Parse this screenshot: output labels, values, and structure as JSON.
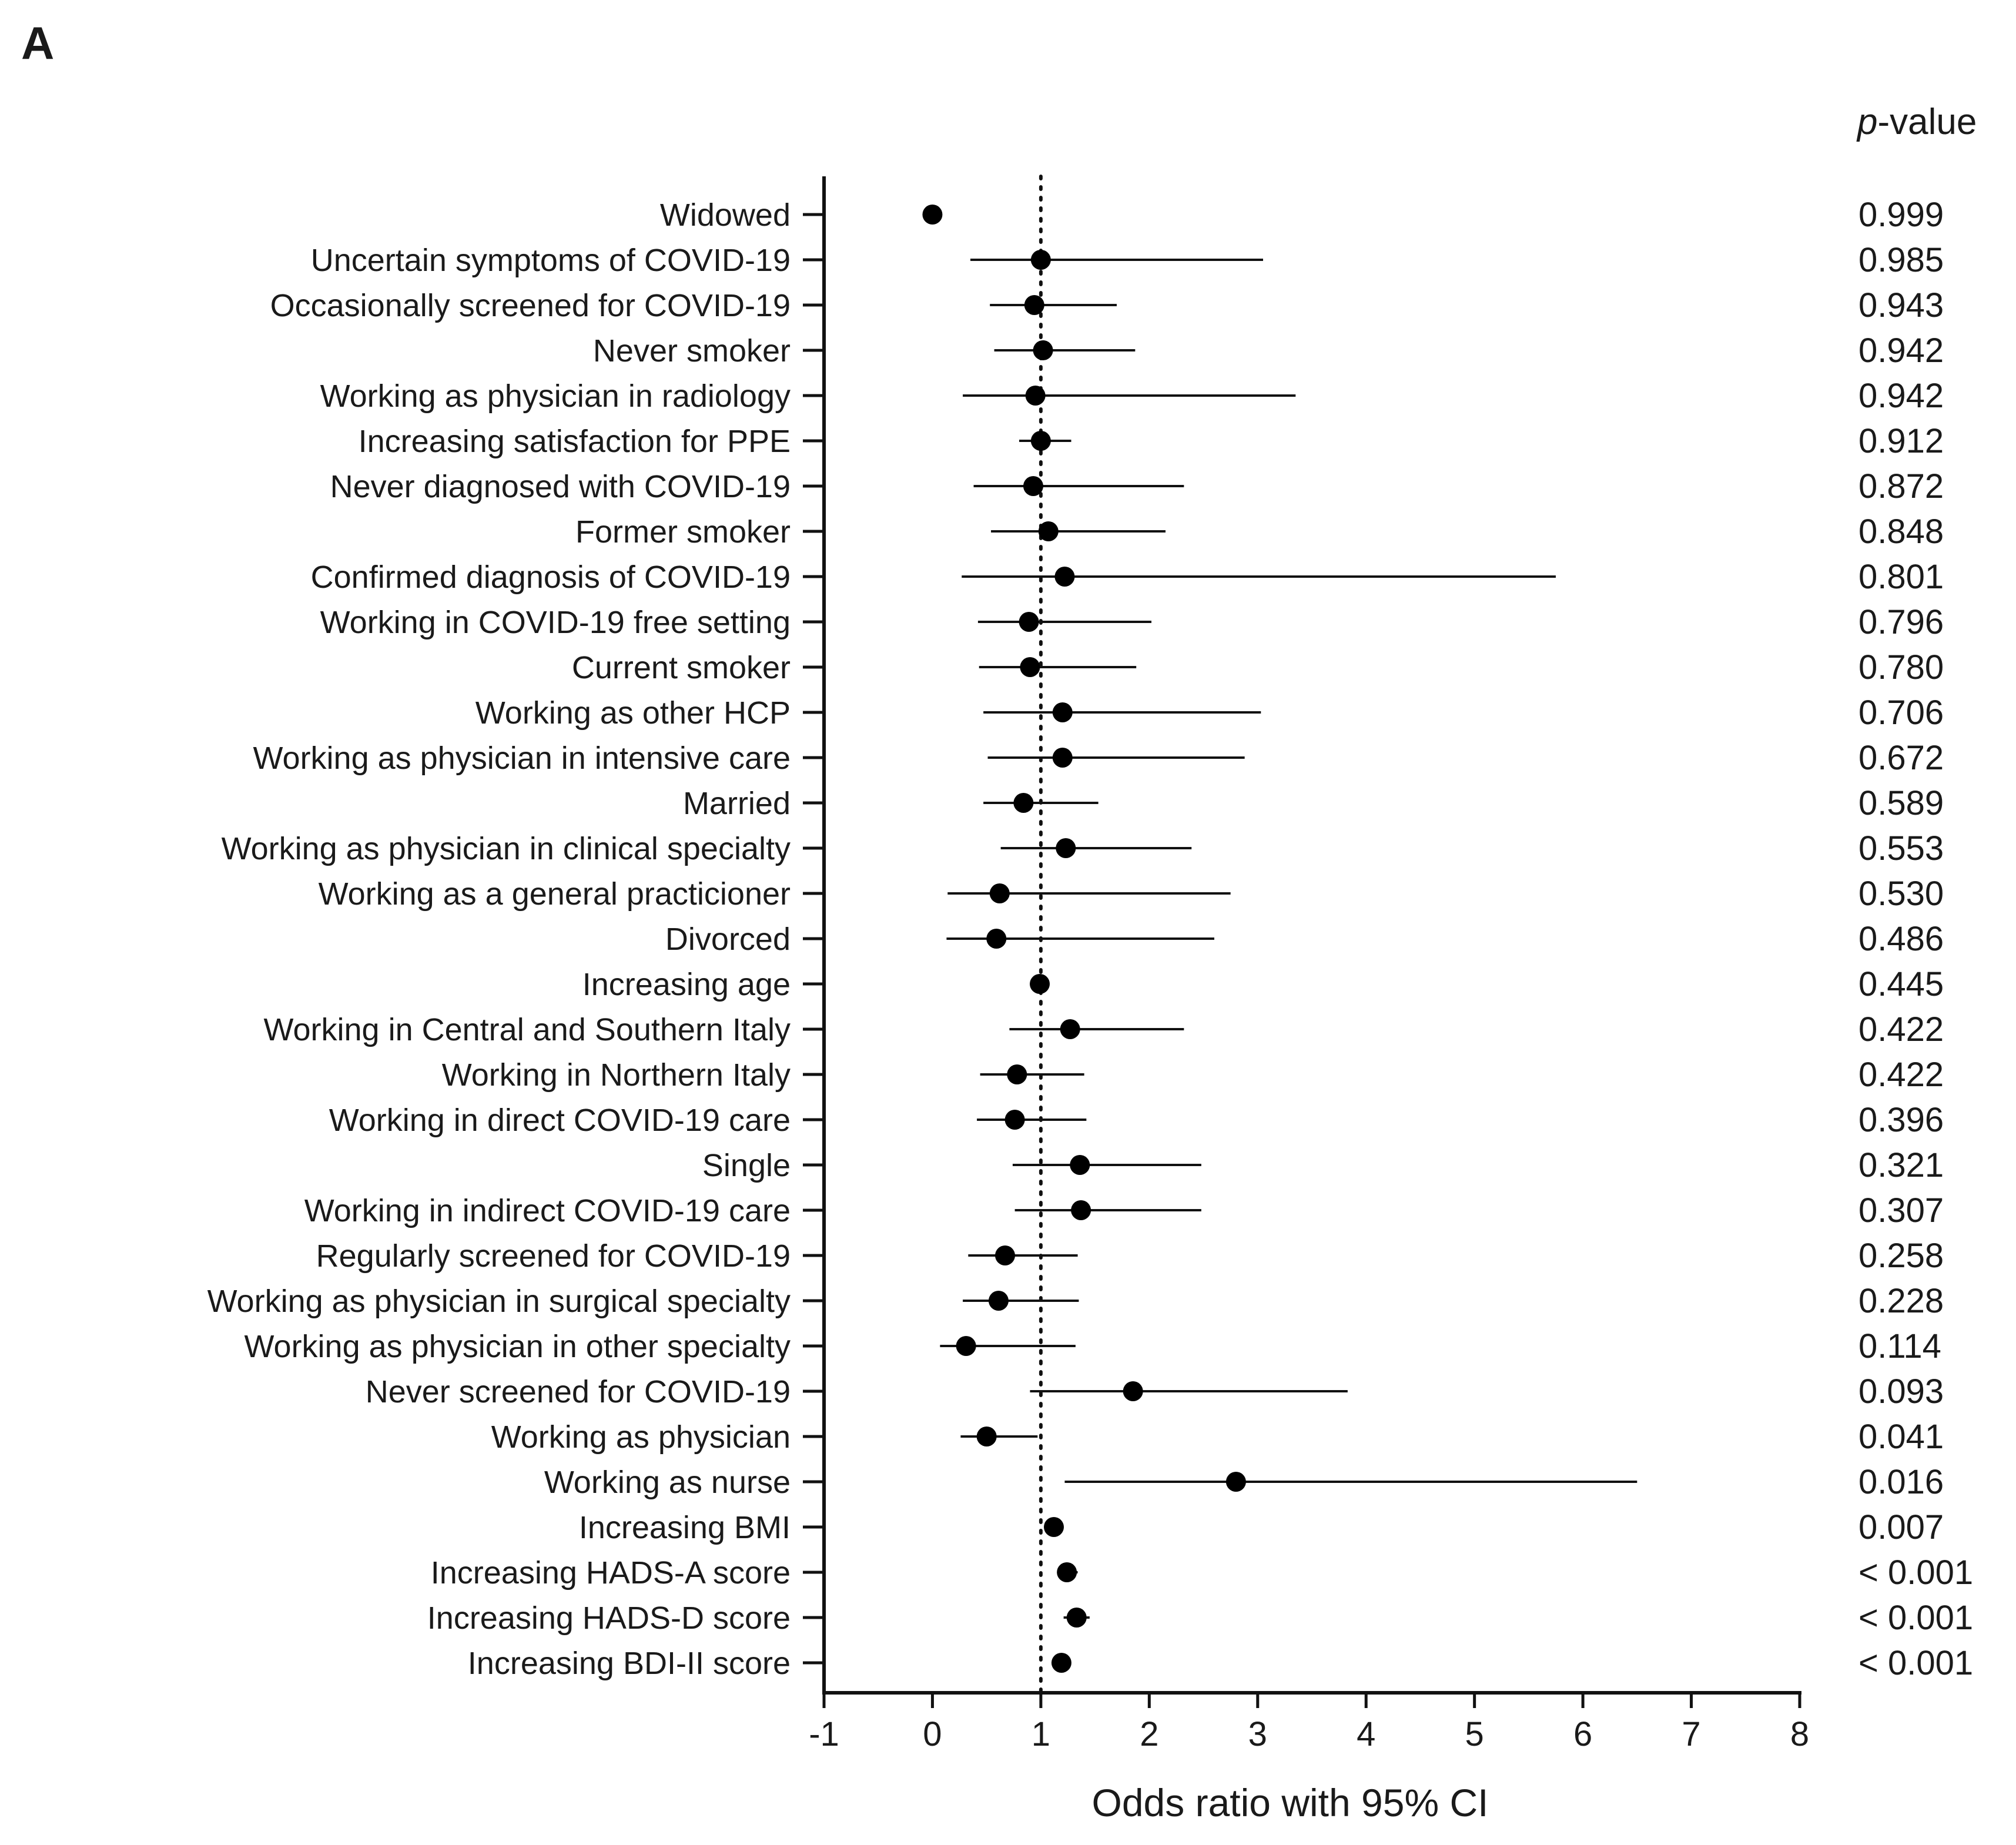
{
  "panel_label": "A",
  "pvalue_header": {
    "italic_part": "p",
    "rest": "-value"
  },
  "chart_data": {
    "type": "forest",
    "title": "",
    "xlabel": "Odds ratio with 95% CI",
    "ylabel": "",
    "xlim": [
      -1,
      8
    ],
    "xticks": [
      -1,
      0,
      1,
      2,
      3,
      4,
      5,
      6,
      7,
      8
    ],
    "reference_line": 1,
    "rows": [
      {
        "label": "Widowed",
        "or": 0.0,
        "lo": null,
        "hi": null,
        "p": "0.999"
      },
      {
        "label": "Uncertain symptoms of COVID-19",
        "or": 1.0,
        "lo": 0.35,
        "hi": 3.05,
        "p": "0.985"
      },
      {
        "label": "Occasionally screened for COVID-19",
        "or": 0.94,
        "lo": 0.53,
        "hi": 1.7,
        "p": "0.943"
      },
      {
        "label": "Never smoker",
        "or": 1.02,
        "lo": 0.57,
        "hi": 1.87,
        "p": "0.942"
      },
      {
        "label": "Working as physician in radiology",
        "or": 0.95,
        "lo": 0.28,
        "hi": 3.35,
        "p": "0.942"
      },
      {
        "label": "Increasing satisfaction for PPE",
        "or": 1.0,
        "lo": 0.8,
        "hi": 1.28,
        "p": "0.912"
      },
      {
        "label": "Never diagnosed with COVID-19",
        "or": 0.93,
        "lo": 0.38,
        "hi": 2.32,
        "p": "0.872"
      },
      {
        "label": "Former smoker",
        "or": 1.07,
        "lo": 0.54,
        "hi": 2.15,
        "p": "0.848"
      },
      {
        "label": "Confirmed diagnosis of COVID-19",
        "or": 1.22,
        "lo": 0.27,
        "hi": 5.75,
        "p": "0.801"
      },
      {
        "label": "Working in COVID-19 free setting",
        "or": 0.89,
        "lo": 0.42,
        "hi": 2.02,
        "p": "0.796"
      },
      {
        "label": "Current smoker",
        "or": 0.9,
        "lo": 0.43,
        "hi": 1.88,
        "p": "0.780"
      },
      {
        "label": "Working as other HCP",
        "or": 1.2,
        "lo": 0.47,
        "hi": 3.03,
        "p": "0.706"
      },
      {
        "label": "Working as physician in intensive care",
        "or": 1.2,
        "lo": 0.51,
        "hi": 2.88,
        "p": "0.672"
      },
      {
        "label": "Married",
        "or": 0.84,
        "lo": 0.47,
        "hi": 1.53,
        "p": "0.589"
      },
      {
        "label": "Working as physician in clinical specialty",
        "or": 1.23,
        "lo": 0.63,
        "hi": 2.39,
        "p": "0.553"
      },
      {
        "label": "Working as a general practicioner",
        "or": 0.62,
        "lo": 0.14,
        "hi": 2.75,
        "p": "0.530"
      },
      {
        "label": "Divorced",
        "or": 0.59,
        "lo": 0.13,
        "hi": 2.6,
        "p": "0.486"
      },
      {
        "label": "Increasing age",
        "or": 0.99,
        "lo": 0.95,
        "hi": 1.03,
        "p": "0.445"
      },
      {
        "label": "Working in Central and Southern Italy",
        "or": 1.27,
        "lo": 0.71,
        "hi": 2.32,
        "p": "0.422"
      },
      {
        "label": "Working in Northern Italy",
        "or": 0.78,
        "lo": 0.44,
        "hi": 1.4,
        "p": "0.422"
      },
      {
        "label": "Working in direct COVID-19 care",
        "or": 0.76,
        "lo": 0.41,
        "hi": 1.42,
        "p": "0.396"
      },
      {
        "label": "Single",
        "or": 1.36,
        "lo": 0.74,
        "hi": 2.48,
        "p": "0.321"
      },
      {
        "label": "Working in indirect COVID-19 care",
        "or": 1.37,
        "lo": 0.76,
        "hi": 2.48,
        "p": "0.307"
      },
      {
        "label": "Regularly screened for COVID-19",
        "or": 0.67,
        "lo": 0.33,
        "hi": 1.34,
        "p": "0.258"
      },
      {
        "label": "Working as physician in surgical specialty",
        "or": 0.61,
        "lo": 0.28,
        "hi": 1.35,
        "p": "0.228"
      },
      {
        "label": "Working as physician in other specialty",
        "or": 0.31,
        "lo": 0.07,
        "hi": 1.32,
        "p": "0.114"
      },
      {
        "label": "Never screened for COVID-19",
        "or": 1.85,
        "lo": 0.9,
        "hi": 3.83,
        "p": "0.093"
      },
      {
        "label": "Working as physician",
        "or": 0.5,
        "lo": 0.26,
        "hi": 0.97,
        "p": "0.041"
      },
      {
        "label": "Working as nurse",
        "or": 2.8,
        "lo": 1.22,
        "hi": 6.5,
        "p": "0.016"
      },
      {
        "label": "Increasing BMI",
        "or": 1.12,
        "lo": 1.03,
        "hi": 1.21,
        "p": "0.007"
      },
      {
        "label": "Increasing HADS-A score",
        "or": 1.24,
        "lo": 1.15,
        "hi": 1.34,
        "p": "< 0.001"
      },
      {
        "label": "Increasing HADS-D score",
        "or": 1.33,
        "lo": 1.21,
        "hi": 1.45,
        "p": "< 0.001"
      },
      {
        "label": "Increasing BDI-II score",
        "or": 1.19,
        "lo": 1.11,
        "hi": 1.27,
        "p": "< 0.001"
      }
    ]
  }
}
